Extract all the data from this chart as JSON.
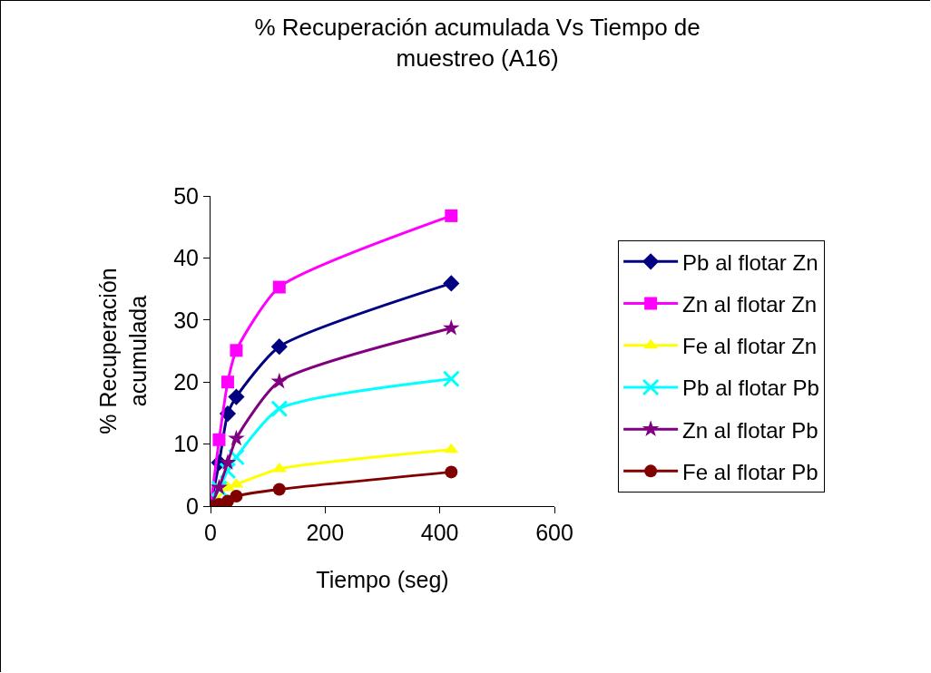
{
  "chart_data": {
    "type": "line",
    "title": "% Recuperación acumulada Vs Tiempo de muestreo (A16)",
    "xlabel": "Tiempo (seg)",
    "ylabel": "% Recuperación acumulada",
    "x": [
      0,
      15,
      30,
      45,
      120,
      420
    ],
    "series": [
      {
        "name": "Pb al flotar Zn",
        "color": "#000080",
        "marker": "diamond",
        "values": [
          0,
          7.0,
          14.9,
          17.6,
          25.7,
          35.9
        ]
      },
      {
        "name": "Zn al flotar Zn",
        "color": "#ff00ff",
        "marker": "square",
        "values": [
          0,
          10.7,
          20.0,
          25.1,
          35.3,
          46.8
        ]
      },
      {
        "name": "Fe al flotar Zn",
        "color": "#ffff00",
        "marker": "triangle",
        "values": [
          0,
          null,
          3.0,
          3.5,
          6.0,
          9.1
        ]
      },
      {
        "name": "Pb al flotar Pb",
        "color": "#00ffff",
        "marker": "cross",
        "values": [
          0,
          2.8,
          5.7,
          7.9,
          15.7,
          20.5
        ]
      },
      {
        "name": "Zn al flotar Pb",
        "color": "#800080",
        "marker": "star",
        "values": [
          0,
          3.0,
          7.0,
          10.9,
          20.1,
          28.7
        ]
      },
      {
        "name": "Fe al flotar Pb",
        "color": "#800000",
        "marker": "circle",
        "values": [
          0,
          0.3,
          0.8,
          1.6,
          2.7,
          5.5
        ]
      }
    ],
    "xlim": [
      0,
      600
    ],
    "xticks": [
      0,
      200,
      400,
      600
    ],
    "ylim": [
      0,
      50
    ],
    "yticks": [
      0,
      10,
      20,
      30,
      40,
      50
    ],
    "grid": false,
    "legend": "right"
  }
}
